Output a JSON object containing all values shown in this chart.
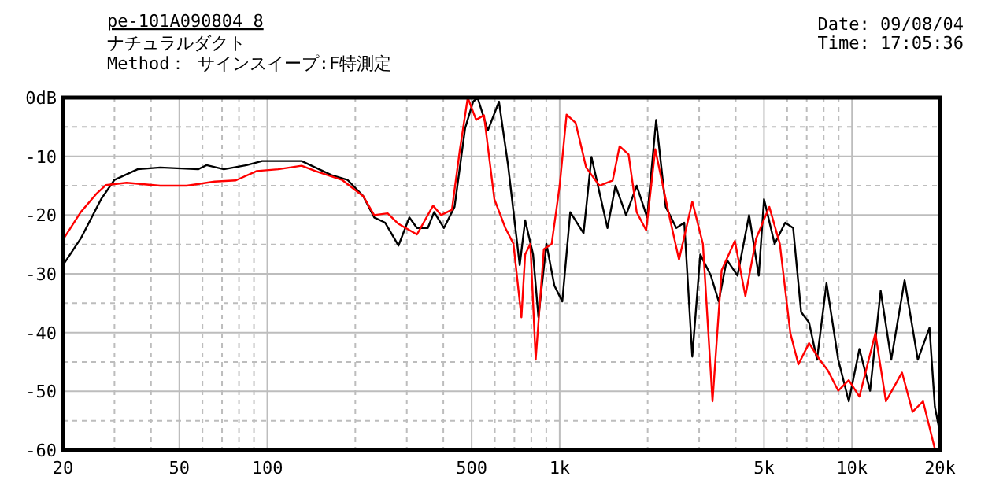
{
  "chart_data": {
    "type": "line",
    "title": "pe-101A090804 8",
    "subtitle": "ナチュラルダクト",
    "annotations": [
      "Method： サインスイープ:F特測定",
      "Date: 09/08/04",
      "Time: 17:05:36"
    ],
    "log": "x",
    "grid": true,
    "xlim": [
      20,
      20000
    ],
    "ylim": [
      -60,
      0
    ],
    "xticks": [
      20,
      {
        "value": 30,
        "label": null
      },
      {
        "value": 40,
        "label": null
      },
      50,
      {
        "value": 60,
        "label": null
      },
      {
        "value": 70,
        "label": null
      },
      {
        "value": 80,
        "label": null
      },
      {
        "value": 90,
        "label": null
      },
      100,
      {
        "value": 200,
        "label": null
      },
      {
        "value": 300,
        "label": null
      },
      {
        "value": 400,
        "label": null
      },
      500,
      {
        "value": 600,
        "label": null
      },
      {
        "value": 700,
        "label": null
      },
      {
        "value": 800,
        "label": null
      },
      {
        "value": 900,
        "label": null
      },
      {
        "value": 1000,
        "label": "1k"
      },
      {
        "value": 2000,
        "label": null
      },
      {
        "value": 3000,
        "label": null
      },
      {
        "value": 4000,
        "label": null
      },
      {
        "value": 5000,
        "label": "5k"
      },
      {
        "value": 6000,
        "label": null
      },
      {
        "value": 7000,
        "label": null
      },
      {
        "value": 8000,
        "label": null
      },
      {
        "value": 9000,
        "label": null
      },
      {
        "value": 10000,
        "label": "10k"
      },
      {
        "value": 20000,
        "label": "20k"
      }
    ],
    "yticks": [
      -60,
      {
        "value": -55,
        "label": null
      },
      -50,
      {
        "value": -45,
        "label": null
      },
      -40,
      {
        "value": -35,
        "label": null
      },
      -30,
      {
        "value": -25,
        "label": null
      },
      -20,
      {
        "value": -15,
        "label": null
      },
      -10,
      {
        "value": -5,
        "label": null
      },
      {
        "value": 0,
        "label": "0dB"
      }
    ],
    "series": [
      {
        "color": "#000000",
        "x": [
          20,
          23,
          27,
          30,
          36,
          43,
          58,
          62,
          71,
          85,
          96,
          131,
          146,
          166,
          188,
          213,
          232,
          253,
          281,
          306,
          325,
          354,
          372,
          402,
          437,
          475,
          506,
          524,
          568,
          620,
          666,
          730,
          762,
          811,
          846,
          901,
          959,
          1021,
          1087,
          1207,
          1285,
          1457,
          1552,
          1687,
          1834,
          1992,
          2138,
          2305,
          2506,
          2668,
          2842,
          3027,
          3290,
          3500,
          3730,
          4058,
          4446,
          4797,
          5000,
          5436,
          5908,
          6290,
          6698,
          7130,
          7590,
          8180,
          8970,
          9750,
          10600,
          11530,
          12530,
          13620,
          15130,
          16790,
          18410,
          19200,
          20000
        ],
        "values": [
          -28.5,
          -24,
          -17.3,
          -14,
          -12.2,
          -11.9,
          -12.2,
          -11.5,
          -12.2,
          -11.5,
          -10.8,
          -10.8,
          -11.9,
          -13.2,
          -14,
          -16.8,
          -20.4,
          -21.3,
          -25.2,
          -20.4,
          -22.2,
          -22.2,
          -19.5,
          -22.2,
          -18.6,
          -5.2,
          -0.7,
          0,
          -5.6,
          -0.7,
          -11.5,
          -28.5,
          -20.9,
          -26.7,
          -37.4,
          -24.9,
          -32,
          -34.7,
          -19.5,
          -23.1,
          -10.1,
          -22.2,
          -15,
          -20,
          -15,
          -20.4,
          -3.8,
          -18.6,
          -22.2,
          -21.3,
          -44.1,
          -26.7,
          -30.3,
          -34.7,
          -27.6,
          -30.3,
          -20,
          -30.3,
          -17.3,
          -24.9,
          -21.3,
          -22.2,
          -36.5,
          -38.3,
          -44.6,
          -31.6,
          -44.6,
          -51.7,
          -42.8,
          -49.9,
          -32.9,
          -44.6,
          -31.1,
          -44.6,
          -39.2,
          -52.6,
          -57.1
        ]
      },
      {
        "color": "#ff0000",
        "x": [
          20,
          23,
          26,
          28,
          33,
          43,
          53,
          66,
          78,
          92,
          109,
          131,
          146,
          180,
          213,
          232,
          258,
          281,
          325,
          369,
          393,
          428,
          456,
          485,
          518,
          551,
          598,
          652,
          695,
          740,
          762,
          794,
          828,
          883,
          939,
          1000,
          1056,
          1134,
          1232,
          1368,
          1518,
          1603,
          1721,
          1834,
          1977,
          2123,
          2355,
          2560,
          2842,
          3090,
          3333,
          3581,
          3974,
          4318,
          4699,
          5212,
          5663,
          6152,
          6556,
          7130,
          7745,
          8260,
          8970,
          9750,
          10600,
          12020,
          13060,
          14830,
          16110,
          17500,
          19200
        ],
        "values": [
          -24.2,
          -19.5,
          -16.4,
          -14.9,
          -14.5,
          -15,
          -15,
          -14.3,
          -14.1,
          -12.5,
          -12.2,
          -11.6,
          -12.5,
          -14,
          -16.8,
          -20,
          -19.7,
          -21.5,
          -23.3,
          -18.4,
          -20,
          -19.1,
          -8.8,
          0,
          -3.8,
          -3,
          -17.3,
          -22.2,
          -24.9,
          -37.4,
          -26.7,
          -24.9,
          -44.6,
          -25.8,
          -24.9,
          -15,
          -2.9,
          -4.3,
          -11.9,
          -15,
          -14.1,
          -8.3,
          -9.7,
          -19.5,
          -22.6,
          -8.8,
          -19.5,
          -27.6,
          -17.7,
          -24.9,
          -51.7,
          -29.4,
          -24.4,
          -33.8,
          -24,
          -18.6,
          -24.9,
          -40.1,
          -45.4,
          -41.8,
          -44.6,
          -46.4,
          -49.9,
          -48.1,
          -50.9,
          -40.1,
          -51.7,
          -46.8,
          -53.5,
          -51.7,
          -59.8
        ]
      }
    ]
  }
}
